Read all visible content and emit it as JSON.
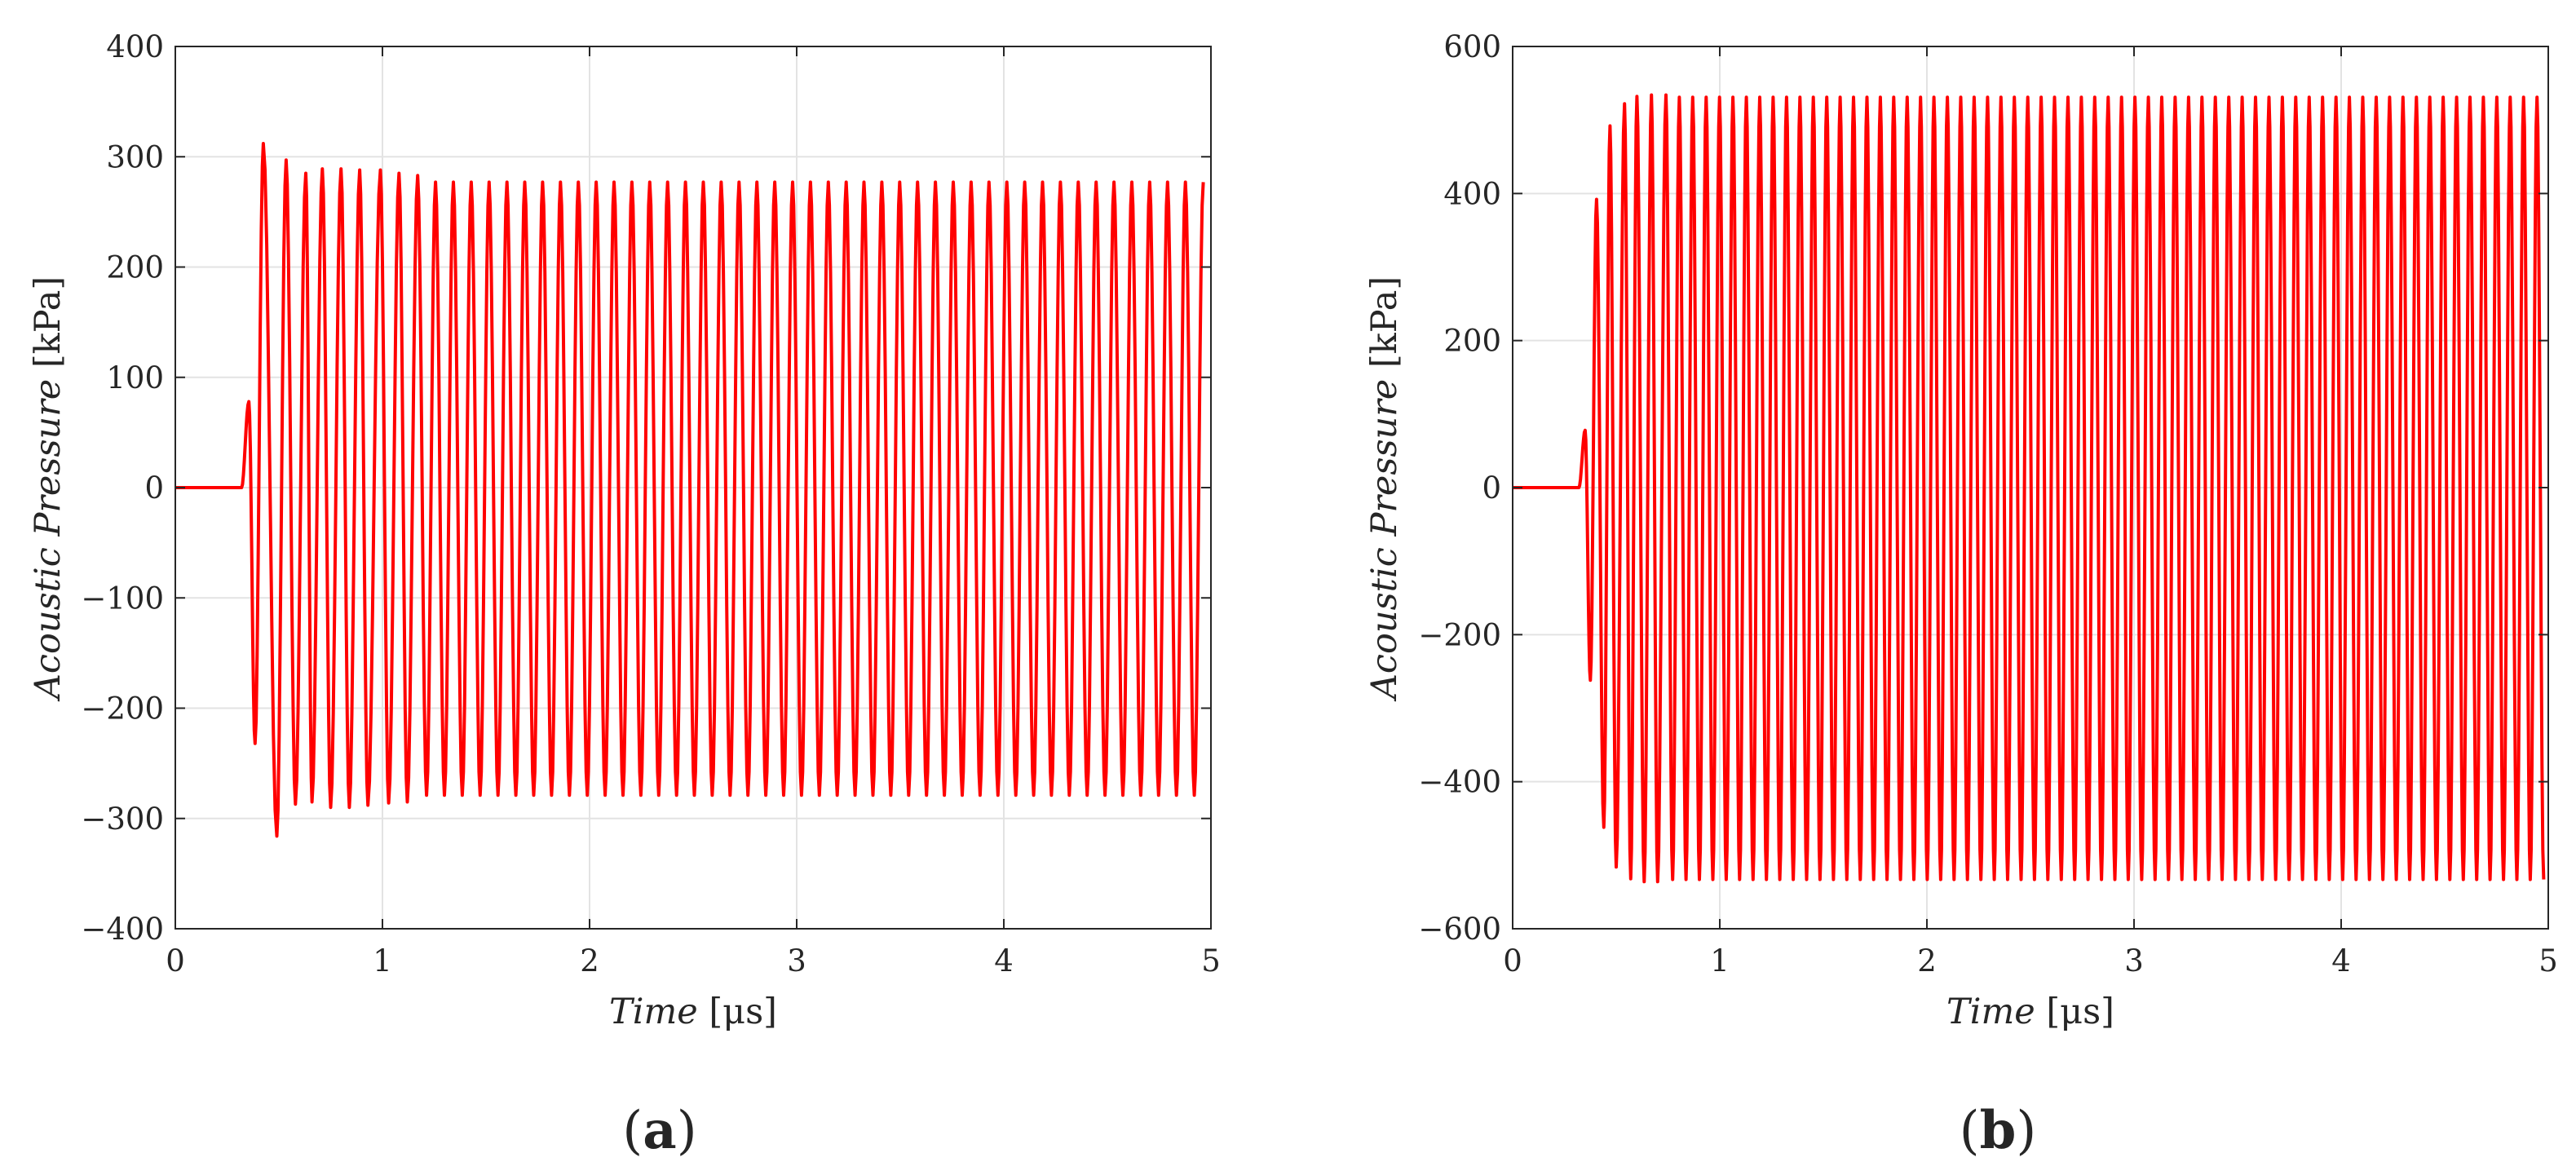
{
  "chart_data": [
    {
      "type": "line",
      "caption": "(a)",
      "caption_letter": "a",
      "xlabel": {
        "name": "Time",
        "unit": "[μs]"
      },
      "ylabel": {
        "name": "Acoustic Pressure",
        "unit": "[kPa]"
      },
      "xlim": [
        0,
        5
      ],
      "ylim": [
        -400,
        400
      ],
      "xticks": [
        0,
        1,
        2,
        3,
        4,
        5
      ],
      "yticks": [
        -400,
        -300,
        -200,
        -100,
        0,
        100,
        200,
        300,
        400
      ],
      "xtick_labels": [
        "0",
        "1",
        "2",
        "3",
        "4",
        "5"
      ],
      "ytick_labels": [
        "−400",
        "−300",
        "−200",
        "−100",
        "0",
        "100",
        "200",
        "300",
        "400"
      ],
      "grid": true,
      "color": "#ff0000",
      "signal": {
        "onset_us": 0.32,
        "period_us": 0.0862,
        "end_us": 5.0,
        "peaks": [
          [
            0.355,
            78
          ],
          [
            0.385,
            -232
          ],
          [
            0.425,
            312
          ],
          [
            0.49,
            -316
          ],
          [
            0.535,
            297
          ],
          [
            0.58,
            -287
          ],
          [
            0.63,
            285
          ],
          [
            0.66,
            -285
          ],
          [
            0.71,
            289
          ],
          [
            0.75,
            -290
          ],
          [
            0.8,
            289
          ],
          [
            0.84,
            -290
          ],
          [
            0.89,
            288
          ],
          [
            0.93,
            -288
          ],
          [
            0.99,
            288
          ],
          [
            1.03,
            -286
          ],
          [
            1.08,
            285
          ],
          [
            1.12,
            -285
          ],
          [
            1.17,
            283
          ]
        ],
        "steady_max": 277,
        "steady_min": -279
      }
    },
    {
      "type": "line",
      "caption": "(b)",
      "caption_letter": "b",
      "xlabel": {
        "name": "Time",
        "unit": "[μs]"
      },
      "ylabel": {
        "name": "Acoustic Pressure",
        "unit": "[kPa]"
      },
      "xlim": [
        0,
        5
      ],
      "ylim": [
        -600,
        600
      ],
      "xticks": [
        0,
        1,
        2,
        3,
        4,
        5
      ],
      "yticks": [
        -600,
        -400,
        -200,
        0,
        200,
        400,
        600
      ],
      "xtick_labels": [
        "0",
        "1",
        "2",
        "3",
        "4",
        "5"
      ],
      "ytick_labels": [
        "−600",
        "−400",
        "−200",
        "0",
        "200",
        "400",
        "600"
      ],
      "grid": true,
      "color": "#ff0000",
      "signal": {
        "onset_us": 0.32,
        "period_us": 0.0647,
        "end_us": 5.0,
        "peaks": [
          [
            0.35,
            78
          ],
          [
            0.375,
            -262
          ],
          [
            0.405,
            392
          ],
          [
            0.44,
            -462
          ],
          [
            0.47,
            492
          ],
          [
            0.5,
            -516
          ],
          [
            0.54,
            522
          ],
          [
            0.57,
            -532
          ],
          [
            0.6,
            532
          ],
          [
            0.635,
            -536
          ],
          [
            0.67,
            534
          ],
          [
            0.7,
            -536
          ],
          [
            0.74,
            534
          ]
        ],
        "steady_max": 531,
        "steady_min": -533
      }
    }
  ]
}
